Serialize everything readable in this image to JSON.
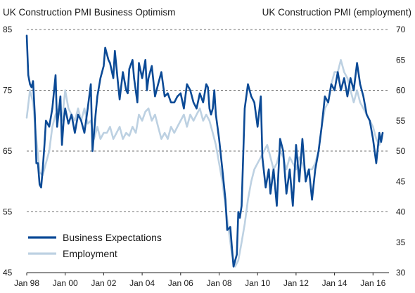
{
  "chart_data": {
    "type": "line",
    "title_left": "UK Construction PMI Business Optimism",
    "title_right": "UK Construction PMI (employment)",
    "left_axis": {
      "ticks": [
        45,
        55,
        65,
        75,
        85
      ],
      "range": [
        45,
        85
      ]
    },
    "right_axis": {
      "ticks": [
        30,
        35,
        40,
        45,
        50,
        55,
        60,
        65,
        70
      ],
      "range": [
        30,
        70
      ]
    },
    "x_axis": {
      "range": [
        1998.0,
        2016.83
      ],
      "ticks": [
        {
          "value": 1998,
          "label": "Jan 98"
        },
        {
          "value": 2000,
          "label": "Jan 00"
        },
        {
          "value": 2002,
          "label": "Jan 02"
        },
        {
          "value": 2004,
          "label": "Jan 04"
        },
        {
          "value": 2006,
          "label": "Jan 06"
        },
        {
          "value": 2008,
          "label": "Jan 08"
        },
        {
          "value": 2010,
          "label": "Jan 10"
        },
        {
          "value": 2012,
          "label": "Jan 12"
        },
        {
          "value": 2014,
          "label": "Jan 14"
        },
        {
          "value": 2016,
          "label": "Jan 16"
        }
      ]
    },
    "grid": true,
    "legend_position": "bottom-left",
    "series": [
      {
        "name": "Business Expectations",
        "axis": "left",
        "color": "#0b4a96",
        "points": [
          [
            1998.0,
            84
          ],
          [
            1998.08,
            77.5
          ],
          [
            1998.17,
            76
          ],
          [
            1998.25,
            75.5
          ],
          [
            1998.33,
            76.5
          ],
          [
            1998.42,
            71
          ],
          [
            1998.5,
            63
          ],
          [
            1998.58,
            63
          ],
          [
            1998.67,
            59.5
          ],
          [
            1998.75,
            59
          ],
          [
            1998.83,
            62
          ],
          [
            1998.92,
            66
          ],
          [
            1999.0,
            70
          ],
          [
            1999.17,
            69
          ],
          [
            1999.33,
            72
          ],
          [
            1999.5,
            77.5
          ],
          [
            1999.58,
            69
          ],
          [
            1999.75,
            74
          ],
          [
            1999.83,
            66
          ],
          [
            1999.92,
            70
          ],
          [
            2000.0,
            72
          ],
          [
            2000.17,
            69.5
          ],
          [
            2000.33,
            71
          ],
          [
            2000.5,
            68
          ],
          [
            2000.67,
            71
          ],
          [
            2000.83,
            70
          ],
          [
            2001.0,
            68
          ],
          [
            2001.17,
            72
          ],
          [
            2001.33,
            76
          ],
          [
            2001.42,
            65
          ],
          [
            2001.5,
            68
          ],
          [
            2001.58,
            71
          ],
          [
            2001.67,
            74
          ],
          [
            2001.83,
            77
          ],
          [
            2002.0,
            79
          ],
          [
            2002.08,
            82
          ],
          [
            2002.25,
            80
          ],
          [
            2002.33,
            79.5
          ],
          [
            2002.5,
            77
          ],
          [
            2002.58,
            81.5
          ],
          [
            2002.75,
            76
          ],
          [
            2002.83,
            73.5
          ],
          [
            2003.0,
            78
          ],
          [
            2003.17,
            75
          ],
          [
            2003.25,
            74.5
          ],
          [
            2003.33,
            78.5
          ],
          [
            2003.5,
            80
          ],
          [
            2003.58,
            77
          ],
          [
            2003.75,
            73
          ],
          [
            2003.83,
            79.5
          ],
          [
            2004.0,
            77
          ],
          [
            2004.17,
            80
          ],
          [
            2004.25,
            75
          ],
          [
            2004.33,
            77
          ],
          [
            2004.5,
            79
          ],
          [
            2004.67,
            74
          ],
          [
            2004.83,
            76
          ],
          [
            2005.0,
            78
          ],
          [
            2005.17,
            74
          ],
          [
            2005.33,
            74.5
          ],
          [
            2005.5,
            73
          ],
          [
            2005.67,
            73
          ],
          [
            2005.83,
            74
          ],
          [
            2006.0,
            74.5
          ],
          [
            2006.17,
            72
          ],
          [
            2006.33,
            76
          ],
          [
            2006.5,
            75
          ],
          [
            2006.67,
            73
          ],
          [
            2006.83,
            72
          ],
          [
            2007.0,
            74.5
          ],
          [
            2007.17,
            73
          ],
          [
            2007.33,
            76
          ],
          [
            2007.42,
            75.5
          ],
          [
            2007.5,
            72
          ],
          [
            2007.58,
            71
          ],
          [
            2007.67,
            72
          ],
          [
            2007.75,
            75
          ],
          [
            2007.83,
            71
          ],
          [
            2008.0,
            67
          ],
          [
            2008.17,
            62
          ],
          [
            2008.33,
            57
          ],
          [
            2008.42,
            52
          ],
          [
            2008.58,
            52.5
          ],
          [
            2008.67,
            49
          ],
          [
            2008.75,
            46
          ],
          [
            2008.92,
            48
          ],
          [
            2009.0,
            55
          ],
          [
            2009.08,
            54
          ],
          [
            2009.17,
            56
          ],
          [
            2009.33,
            72
          ],
          [
            2009.5,
            76
          ],
          [
            2009.67,
            74
          ],
          [
            2009.83,
            73
          ],
          [
            2010.0,
            69
          ],
          [
            2010.17,
            74
          ],
          [
            2010.25,
            64
          ],
          [
            2010.42,
            59
          ],
          [
            2010.58,
            62
          ],
          [
            2010.67,
            58
          ],
          [
            2010.83,
            62
          ],
          [
            2011.0,
            56
          ],
          [
            2011.17,
            67
          ],
          [
            2011.33,
            65
          ],
          [
            2011.5,
            58
          ],
          [
            2011.67,
            62
          ],
          [
            2011.83,
            56
          ],
          [
            2012.0,
            66
          ],
          [
            2012.17,
            60
          ],
          [
            2012.33,
            67
          ],
          [
            2012.5,
            60
          ],
          [
            2012.67,
            62
          ],
          [
            2012.83,
            57
          ],
          [
            2013.0,
            62
          ],
          [
            2013.17,
            65
          ],
          [
            2013.33,
            69
          ],
          [
            2013.5,
            74
          ],
          [
            2013.67,
            73
          ],
          [
            2013.83,
            76
          ],
          [
            2014.0,
            75
          ],
          [
            2014.17,
            78
          ],
          [
            2014.33,
            75
          ],
          [
            2014.5,
            77
          ],
          [
            2014.67,
            74
          ],
          [
            2014.83,
            77
          ],
          [
            2015.0,
            75
          ],
          [
            2015.17,
            79.5
          ],
          [
            2015.33,
            76
          ],
          [
            2015.5,
            74
          ],
          [
            2015.67,
            71
          ],
          [
            2015.83,
            70
          ],
          [
            2016.0,
            67
          ],
          [
            2016.17,
            63
          ],
          [
            2016.33,
            68
          ],
          [
            2016.42,
            66.5
          ],
          [
            2016.5,
            68
          ]
        ]
      },
      {
        "name": "Employment",
        "axis": "right",
        "color": "#bdd1e2",
        "points": [
          [
            1998.0,
            55.5
          ],
          [
            1998.17,
            60
          ],
          [
            1998.33,
            58
          ],
          [
            1998.5,
            52
          ],
          [
            1998.67,
            46.5
          ],
          [
            1998.83,
            46
          ],
          [
            1999.0,
            48
          ],
          [
            1999.17,
            50
          ],
          [
            1999.33,
            54
          ],
          [
            1999.5,
            56
          ],
          [
            1999.67,
            57
          ],
          [
            1999.83,
            55
          ],
          [
            2000.0,
            60
          ],
          [
            2000.17,
            57
          ],
          [
            2000.33,
            56
          ],
          [
            2000.5,
            55
          ],
          [
            2000.67,
            57
          ],
          [
            2000.83,
            55
          ],
          [
            2001.0,
            57
          ],
          [
            2001.17,
            54.5
          ],
          [
            2001.33,
            55
          ],
          [
            2001.5,
            52
          ],
          [
            2001.67,
            54
          ],
          [
            2001.83,
            52
          ],
          [
            2002.0,
            53
          ],
          [
            2002.17,
            53
          ],
          [
            2002.33,
            54
          ],
          [
            2002.5,
            52
          ],
          [
            2002.67,
            53
          ],
          [
            2002.83,
            54
          ],
          [
            2003.0,
            52
          ],
          [
            2003.17,
            53
          ],
          [
            2003.33,
            52.5
          ],
          [
            2003.5,
            54
          ],
          [
            2003.67,
            53
          ],
          [
            2003.83,
            56
          ],
          [
            2004.0,
            55
          ],
          [
            2004.17,
            56.5
          ],
          [
            2004.33,
            57
          ],
          [
            2004.5,
            55
          ],
          [
            2004.67,
            56
          ],
          [
            2004.83,
            54
          ],
          [
            2005.0,
            52
          ],
          [
            2005.17,
            53
          ],
          [
            2005.33,
            52
          ],
          [
            2005.5,
            54
          ],
          [
            2005.67,
            53
          ],
          [
            2005.83,
            54
          ],
          [
            2006.0,
            55
          ],
          [
            2006.17,
            56
          ],
          [
            2006.33,
            54
          ],
          [
            2006.5,
            56
          ],
          [
            2006.67,
            55
          ],
          [
            2006.83,
            56
          ],
          [
            2007.0,
            57
          ],
          [
            2007.17,
            55
          ],
          [
            2007.33,
            56
          ],
          [
            2007.5,
            55
          ],
          [
            2007.67,
            53
          ],
          [
            2007.83,
            51
          ],
          [
            2008.0,
            48
          ],
          [
            2008.17,
            45
          ],
          [
            2008.33,
            41
          ],
          [
            2008.5,
            37
          ],
          [
            2008.67,
            33
          ],
          [
            2008.83,
            31
          ],
          [
            2009.0,
            32
          ],
          [
            2009.17,
            35
          ],
          [
            2009.33,
            38
          ],
          [
            2009.5,
            42
          ],
          [
            2009.67,
            45
          ],
          [
            2009.83,
            47
          ],
          [
            2010.0,
            48
          ],
          [
            2010.17,
            49
          ],
          [
            2010.33,
            50
          ],
          [
            2010.5,
            51
          ],
          [
            2010.67,
            49
          ],
          [
            2010.83,
            47
          ],
          [
            2011.0,
            48
          ],
          [
            2011.17,
            50
          ],
          [
            2011.33,
            49
          ],
          [
            2011.5,
            47
          ],
          [
            2011.67,
            49
          ],
          [
            2011.83,
            48
          ],
          [
            2012.0,
            47
          ],
          [
            2012.17,
            49
          ],
          [
            2012.33,
            48
          ],
          [
            2012.5,
            46
          ],
          [
            2012.67,
            47
          ],
          [
            2012.83,
            47
          ],
          [
            2013.0,
            48
          ],
          [
            2013.17,
            50
          ],
          [
            2013.33,
            54
          ],
          [
            2013.5,
            57
          ],
          [
            2013.67,
            58
          ],
          [
            2013.83,
            61
          ],
          [
            2014.0,
            63
          ],
          [
            2014.17,
            63
          ],
          [
            2014.33,
            65
          ],
          [
            2014.5,
            63
          ],
          [
            2014.67,
            62
          ],
          [
            2014.83,
            60
          ],
          [
            2015.0,
            58
          ],
          [
            2015.17,
            60
          ],
          [
            2015.33,
            58
          ],
          [
            2015.5,
            57
          ],
          [
            2015.67,
            56
          ],
          [
            2015.83,
            55
          ],
          [
            2016.0,
            54
          ],
          [
            2016.17,
            52
          ],
          [
            2016.33,
            51
          ],
          [
            2016.5,
            53
          ]
        ]
      }
    ]
  }
}
